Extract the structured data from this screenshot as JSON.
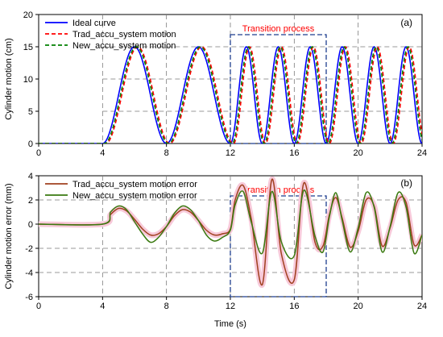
{
  "xlabel": "Time (s)",
  "chart_data": [
    {
      "type": "line",
      "panel_label": "(a)",
      "xlim": [
        0,
        24
      ],
      "ylim": [
        0,
        20
      ],
      "xticks": [
        0,
        4,
        8,
        12,
        16,
        20,
        24
      ],
      "yticks": [
        0,
        5,
        10,
        15,
        20
      ],
      "ylabel": "Cylinder motion (cm)",
      "xlabel": "",
      "grid": "dashed at x=4..24 step 4 and y=5,10,15",
      "legend": "top-left",
      "annotation": {
        "text": "Transition process",
        "x_range": [
          12,
          18
        ],
        "color": "#ff0000",
        "box_color": "#1f3f8f"
      },
      "peaks_x": [
        6,
        10,
        13,
        15,
        17,
        19,
        21,
        23
      ],
      "series": [
        {
          "name": "Ideal curve",
          "color": "#0000ff",
          "style": "solid",
          "lag": 0,
          "x": [
            0,
            4,
            5,
            6,
            7,
            8,
            9,
            10,
            11,
            12,
            12.5,
            13,
            13.5,
            14,
            14.5,
            15,
            15.5,
            16,
            16.5,
            17,
            17.5,
            18,
            18.5,
            19,
            19.5,
            20,
            20.5,
            21,
            21.5,
            22,
            22.5,
            23,
            23.5,
            24
          ],
          "y": [
            0,
            0,
            7.5,
            15,
            7.5,
            0,
            7.5,
            15,
            7.5,
            0,
            7.5,
            15,
            7.5,
            0,
            7.5,
            15,
            7.5,
            0,
            7.5,
            15,
            7.5,
            0,
            7.5,
            15,
            7.5,
            0,
            7.5,
            15,
            7.5,
            0,
            7.5,
            15,
            7.5,
            0
          ]
        },
        {
          "name": "Trad_accu_system motion",
          "color": "#ff0000",
          "style": "dashed",
          "lag": 0.2
        },
        {
          "name": "New_accu_system motion",
          "color": "#008000",
          "style": "dashed",
          "lag": 0.12
        }
      ]
    },
    {
      "type": "line",
      "panel_label": "(b)",
      "xlim": [
        0,
        24
      ],
      "ylim": [
        -6,
        4
      ],
      "xticks": [
        0,
        4,
        8,
        12,
        16,
        20,
        24
      ],
      "yticks": [
        -6,
        -4,
        -2,
        0,
        2,
        4
      ],
      "ylabel": "Cylinder motion error (mm)",
      "xlabel": "Time (s)",
      "grid": "dashed at x=4..24 step 4 and y=-4,-2,2",
      "legend": "top-left",
      "annotation": {
        "text": "Transition process",
        "x_range": [
          12,
          18
        ],
        "color": "#ff0000",
        "box_color": "#1f3f8f"
      },
      "series": [
        {
          "name": "Trad_accu_system motion error",
          "color": "#a0401f",
          "x": [
            0,
            4,
            4.5,
            5,
            5.5,
            6,
            6.5,
            7,
            7.5,
            8,
            8.5,
            9,
            9.5,
            10,
            10.5,
            11,
            11.5,
            12,
            12.3,
            12.8,
            13.3,
            14,
            14.6,
            15.2,
            16,
            16.6,
            17.3,
            17.8,
            18.2,
            18.6,
            19,
            19.5,
            20,
            20.5,
            21,
            21.5,
            22,
            22.5,
            23,
            23.5,
            24
          ],
          "y": [
            0,
            0,
            0.8,
            1.3,
            1.1,
            0.4,
            -0.4,
            -0.9,
            -0.8,
            -0.2,
            0.7,
            1.2,
            1.0,
            0.3,
            -0.5,
            -0.9,
            -0.8,
            -0.4,
            2.0,
            3.2,
            0.5,
            -5.0,
            3.7,
            -2.5,
            -4.6,
            3.4,
            -1.5,
            -1.8,
            0.8,
            2.2,
            0.5,
            -1.9,
            -0.6,
            2.0,
            1.5,
            -1.8,
            -0.3,
            2.0,
            1.8,
            -1.7,
            -0.9
          ]
        },
        {
          "name": "New_accu_system motion error",
          "color": "#3a7a10",
          "x": [
            0,
            4,
            4.5,
            5,
            5.5,
            6,
            6.5,
            7,
            7.5,
            8,
            8.5,
            9,
            9.5,
            10,
            10.5,
            11,
            11.5,
            12,
            12.3,
            12.8,
            13.3,
            14,
            14.6,
            15.2,
            16,
            16.6,
            17.3,
            17.8,
            18.2,
            18.6,
            19,
            19.5,
            20,
            20.5,
            21,
            21.5,
            22,
            22.5,
            23,
            23.5,
            24
          ],
          "y": [
            0,
            0,
            1.0,
            1.5,
            1.2,
            0.2,
            -0.8,
            -1.5,
            -1.1,
            -0.2,
            0.9,
            1.5,
            1.2,
            0.3,
            -0.9,
            -1.4,
            -1.1,
            -0.5,
            1.6,
            2.7,
            0.2,
            -2.4,
            2.7,
            -1.5,
            -2.6,
            2.8,
            -1.0,
            -2.3,
            0.6,
            2.6,
            0.3,
            -2.3,
            -0.3,
            2.6,
            1.4,
            -2.3,
            -0.2,
            2.6,
            1.4,
            -2.4,
            -0.9
          ]
        }
      ]
    }
  ]
}
